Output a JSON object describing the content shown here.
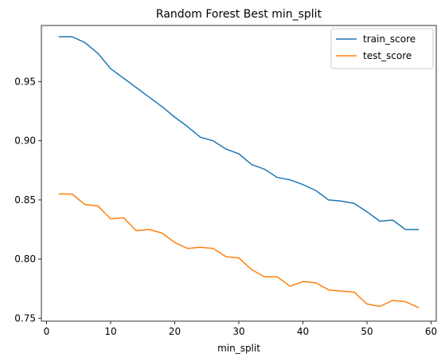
{
  "chart_data": {
    "type": "line",
    "title": "Random Forest Best min_split",
    "xlabel": "min_split",
    "ylabel": "",
    "xlim": [
      -0.8,
      60.8
    ],
    "ylim": [
      0.7475,
      0.9975
    ],
    "xticks": [
      0,
      10,
      20,
      30,
      40,
      50,
      60
    ],
    "yticks": [
      0.75,
      0.8,
      0.85,
      0.9,
      0.95
    ],
    "grid": false,
    "legend_position": "top-right",
    "x": [
      2,
      4,
      6,
      8,
      10,
      12,
      14,
      16,
      18,
      20,
      22,
      24,
      26,
      28,
      30,
      32,
      34,
      36,
      38,
      40,
      42,
      44,
      46,
      48,
      50,
      52,
      54,
      56,
      58
    ],
    "series": [
      {
        "name": "train_score",
        "color": "#1f77b4",
        "values": [
          0.988,
          0.988,
          0.983,
          0.974,
          0.961,
          0.953,
          0.945,
          0.937,
          0.929,
          0.92,
          0.912,
          0.903,
          0.9,
          0.893,
          0.889,
          0.88,
          0.876,
          0.869,
          0.867,
          0.863,
          0.858,
          0.85,
          0.849,
          0.847,
          0.84,
          0.832,
          0.833,
          0.825,
          0.825
        ]
      },
      {
        "name": "test_score",
        "color": "#ff7f0e",
        "values": [
          0.855,
          0.855,
          0.846,
          0.845,
          0.834,
          0.835,
          0.824,
          0.825,
          0.822,
          0.814,
          0.809,
          0.81,
          0.809,
          0.802,
          0.801,
          0.791,
          0.785,
          0.785,
          0.777,
          0.781,
          0.78,
          0.774,
          0.773,
          0.772,
          0.762,
          0.76,
          0.765,
          0.764,
          0.759
        ]
      }
    ]
  }
}
